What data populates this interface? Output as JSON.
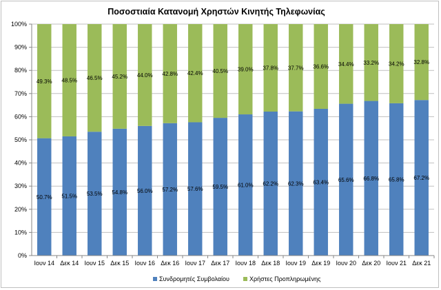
{
  "chart_data": {
    "type": "bar",
    "stacked": true,
    "title": "Ποσοστιαία Κατανομή Χρηστών Κινητής Τηλεφωνίας",
    "categories": [
      "Ιουν 14",
      "Δεκ 14",
      "Ιουν 15",
      "Δεκ 15",
      "Ιουν 16",
      "Δεκ 16",
      "Ιουν 17",
      "Δεκ 17",
      "Ιουν 18",
      "Δεκ 18",
      "Ιουν 19",
      "Δεκ 19",
      "Ιουν 20",
      "Δεκ 20",
      "Ιουν 21",
      "Δεκ 21"
    ],
    "series": [
      {
        "name": "Συνδρομητές Συμβολαίου",
        "color": "#4f81bd",
        "values": [
          50.7,
          51.5,
          53.5,
          54.8,
          56.0,
          57.2,
          57.6,
          59.5,
          61.0,
          62.2,
          62.3,
          63.4,
          65.6,
          66.8,
          65.8,
          67.2
        ],
        "labels": [
          "50.7%",
          "51.5%",
          "53.5%",
          "54.8%",
          "56.0%",
          "57.2%",
          "57.6%",
          "59.5%",
          "61.0%",
          "62.2%",
          "62.3%",
          "63.4%",
          "65.6%",
          "66.8%",
          "65.8%",
          "67.2%"
        ]
      },
      {
        "name": "Χρήστες Προπληρωμένης",
        "color": "#9bbb59",
        "values": [
          49.3,
          48.5,
          46.5,
          45.2,
          44.0,
          42.8,
          42.4,
          40.5,
          39.0,
          37.8,
          37.7,
          36.6,
          34.4,
          33.2,
          34.2,
          32.8
        ],
        "labels": [
          "49.3%",
          "48.5%",
          "46.5%",
          "45.2%",
          "44.0%",
          "42.8%",
          "42.4%",
          "40.5%",
          "39.0%",
          "37.8%",
          "37.7%",
          "36.6%",
          "34.4%",
          "33.2%",
          "34.2%",
          "32.8%"
        ]
      }
    ],
    "ylim": [
      0,
      100
    ],
    "y_ticks": [
      "0%",
      "10%",
      "20%",
      "30%",
      "40%",
      "50%",
      "60%",
      "70%",
      "80%",
      "90%",
      "100%"
    ],
    "grid": true,
    "legend": "bottom"
  }
}
